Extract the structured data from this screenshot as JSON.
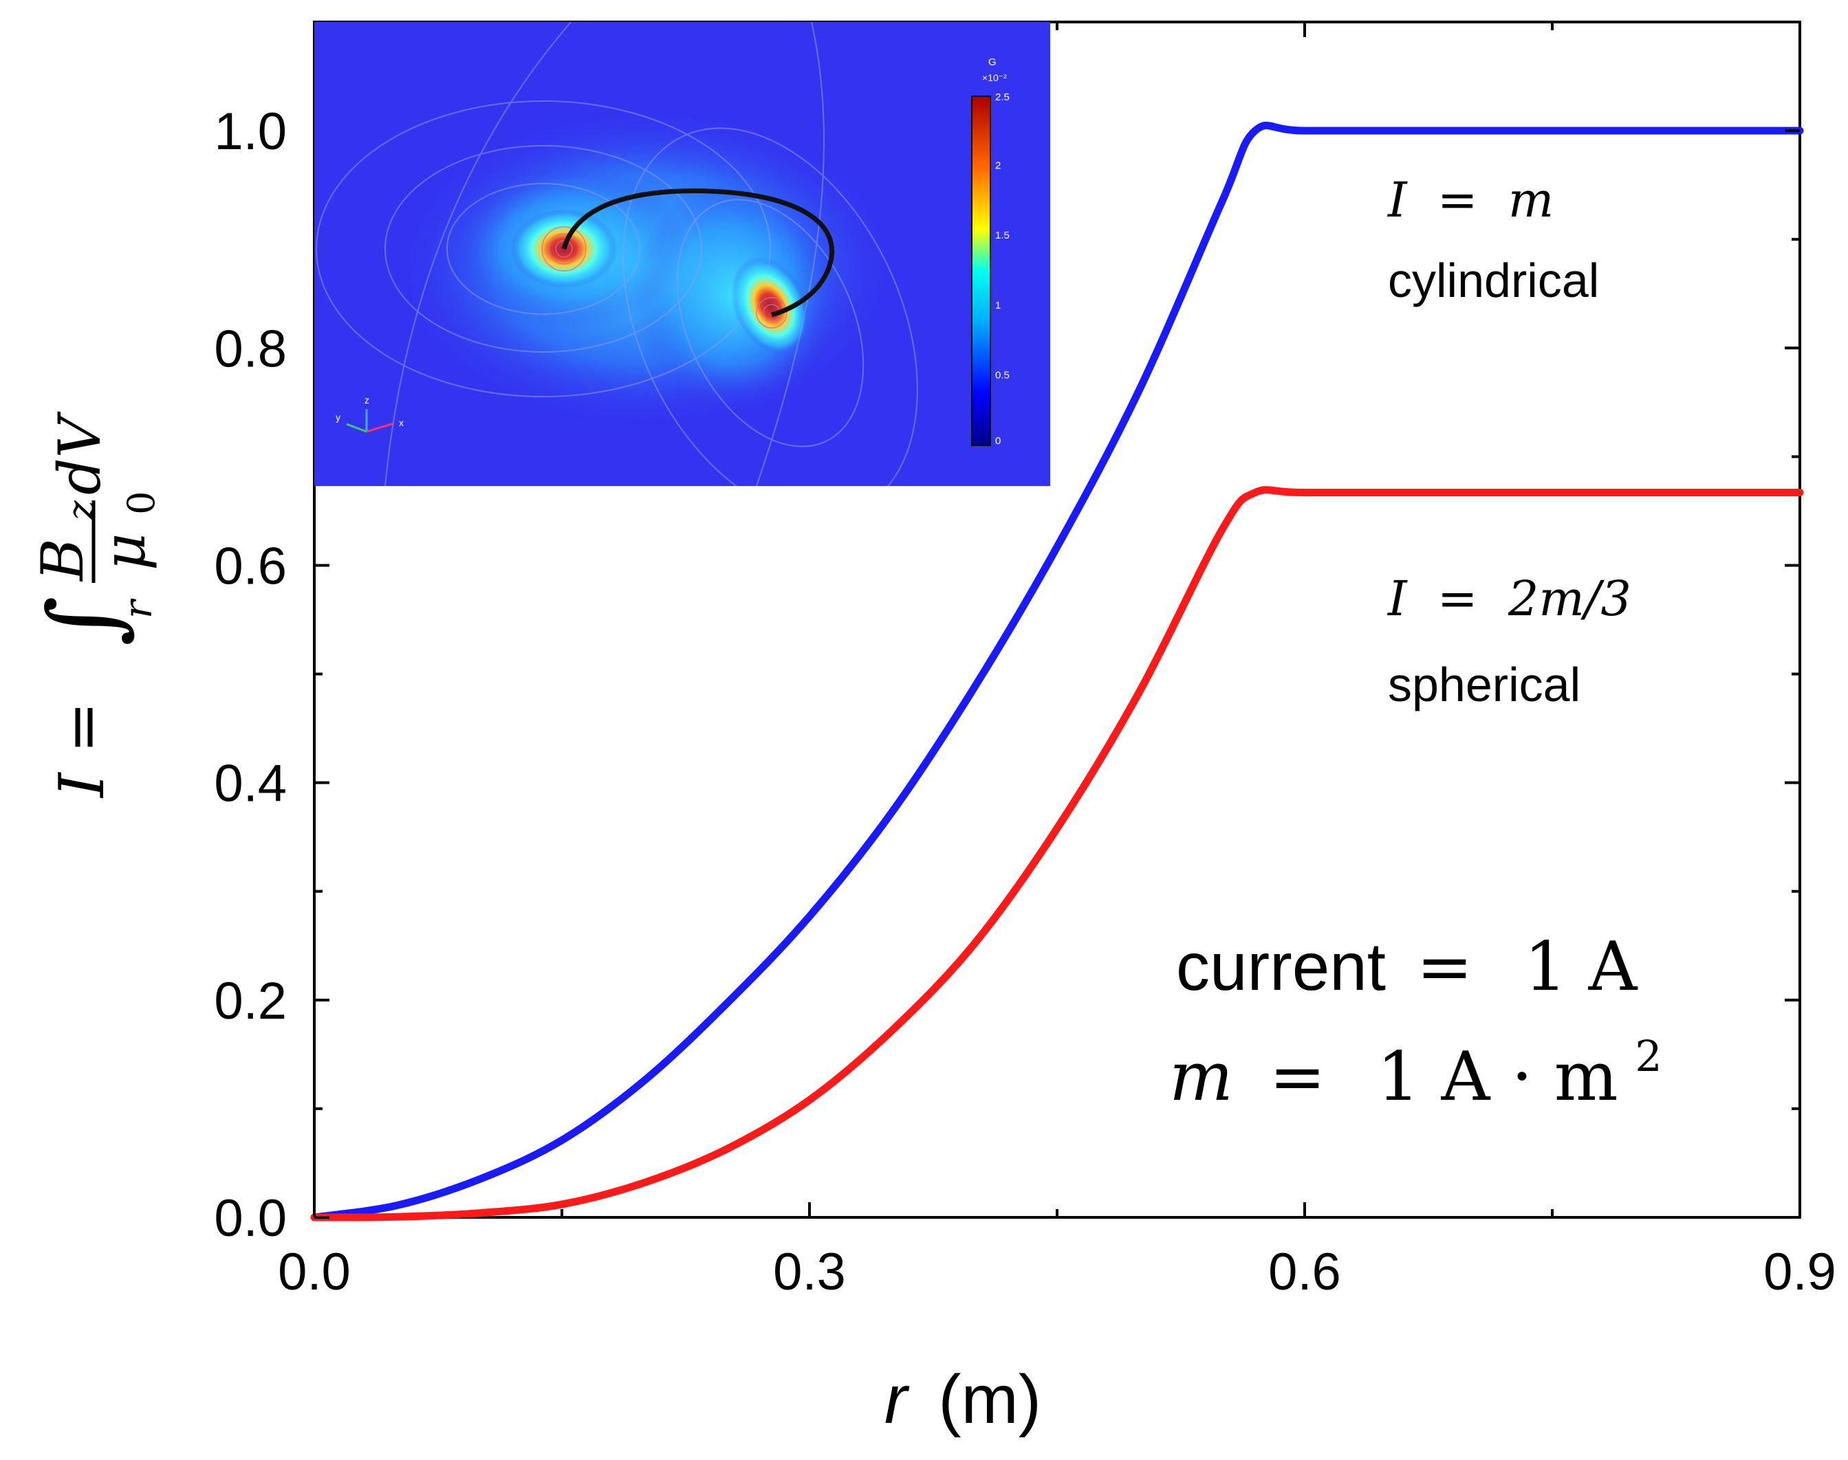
{
  "chart_data": {
    "type": "line",
    "xlabel_var": "r",
    "xlabel_unit": "(m)",
    "ylabel": "I = ∫_r (B_z/μ_0) dV",
    "ylabel_parts": {
      "lhs": "I =",
      "integral": "∫",
      "subscript": "r",
      "numerator": "B",
      "numerator_sub": "z",
      "denominator": "μ",
      "denominator_sub": "0",
      "tail": "dV"
    },
    "xlim": [
      0.0,
      0.9
    ],
    "ylim": [
      0.0,
      1.1
    ],
    "xticks": [
      0.0,
      0.3,
      0.6,
      0.9
    ],
    "xtick_labels": [
      "0.0",
      "0.3",
      "0.6",
      "0.9"
    ],
    "yticks": [
      0.0,
      0.2,
      0.4,
      0.6,
      0.8,
      1.0
    ],
    "ytick_labels": [
      "0.0",
      "0.2",
      "0.4",
      "0.6",
      "0.8",
      "1.0"
    ],
    "series": [
      {
        "name": "cylindrical",
        "color": "#1a1aff",
        "x": [
          0.0,
          0.05,
          0.1,
          0.15,
          0.2,
          0.25,
          0.3,
          0.35,
          0.4,
          0.45,
          0.5,
          0.55,
          0.57,
          0.6,
          0.7,
          0.8,
          0.9
        ],
        "y": [
          0.0,
          0.011,
          0.035,
          0.071,
          0.126,
          0.197,
          0.277,
          0.373,
          0.488,
          0.617,
          0.762,
          0.935,
          1.0,
          1.0,
          1.0,
          1.0,
          1.0
        ]
      },
      {
        "name": "spherical",
        "color": "#ff1a1a",
        "x": [
          0.0,
          0.05,
          0.1,
          0.15,
          0.2,
          0.25,
          0.3,
          0.35,
          0.4,
          0.45,
          0.5,
          0.55,
          0.57,
          0.6,
          0.7,
          0.8,
          0.9
        ],
        "y": [
          0.0,
          0.0005,
          0.004,
          0.012,
          0.032,
          0.063,
          0.108,
          0.172,
          0.252,
          0.358,
          0.484,
          0.633,
          0.667,
          0.667,
          0.667,
          0.667,
          0.667
        ]
      }
    ],
    "annotations": {
      "cyl_formula_lhs": "I",
      "cyl_formula_eq": "=",
      "cyl_formula_rhs": "m",
      "cyl_label": "cylindrical",
      "sph_formula_lhs": "I",
      "sph_formula_eq": "=",
      "sph_formula_rhs": "2m/3",
      "sph_label": "spherical",
      "current_word": "current",
      "current_eq": "=",
      "current_value": "1 A",
      "moment_var": "m",
      "moment_eq": "=",
      "moment_value": "1 A · m",
      "moment_exp": "2"
    },
    "inset": {
      "colorbar_unit": "G",
      "colorbar_scale": "×10⁻²",
      "colorbar_ticks": [
        "2.5",
        "2",
        "1.5",
        "1",
        "0.5",
        "0"
      ],
      "axes_labels": [
        "z",
        "y",
        "x"
      ]
    }
  },
  "colors": {
    "axis": "#000000",
    "inset_background": "#3434f0"
  }
}
